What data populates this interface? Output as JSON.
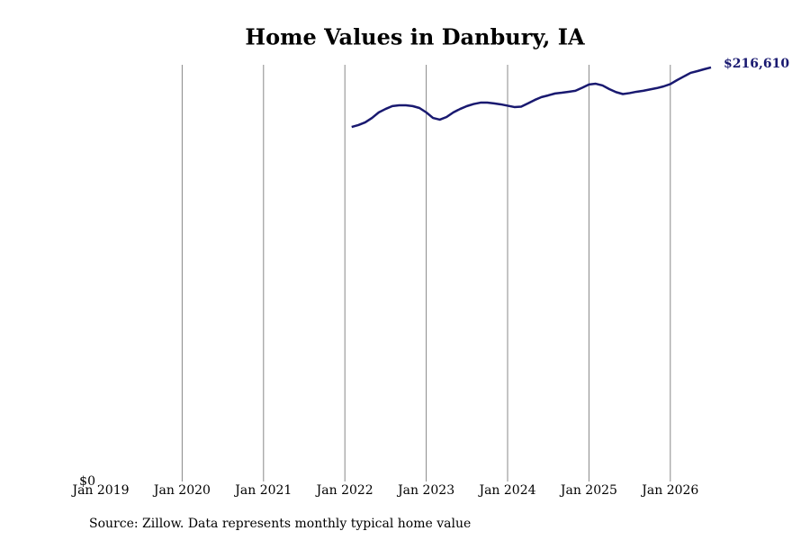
{
  "chart_data": {
    "type": "line",
    "title": "Home Values in Danbury, IA",
    "source": "Source: Zillow. Data represents monthly typical home value",
    "x": [
      "2022-02",
      "2022-03",
      "2022-04",
      "2022-05",
      "2022-06",
      "2022-07",
      "2022-08",
      "2022-09",
      "2022-10",
      "2022-11",
      "2022-12",
      "2023-01",
      "2023-02",
      "2023-03",
      "2023-04",
      "2023-05",
      "2023-06",
      "2023-07",
      "2023-08",
      "2023-09",
      "2023-10",
      "2023-11",
      "2023-12",
      "2024-01",
      "2024-02",
      "2024-03",
      "2024-04",
      "2024-05",
      "2024-06",
      "2024-07",
      "2024-08",
      "2024-09",
      "2024-10",
      "2024-11",
      "2024-12",
      "2025-01",
      "2025-02",
      "2025-03",
      "2025-04",
      "2025-05",
      "2025-06",
      "2025-07",
      "2025-08",
      "2025-09",
      "2025-10",
      "2025-11",
      "2025-12",
      "2026-01",
      "2026-02",
      "2026-03",
      "2026-04",
      "2026-05",
      "2026-06",
      "2026-07"
    ],
    "series": [
      {
        "name": "Home value",
        "color": "#191970",
        "values": [
          185500,
          186500,
          187900,
          190200,
          193100,
          194900,
          196400,
          196800,
          196800,
          196400,
          195400,
          193100,
          190200,
          189300,
          190700,
          193100,
          194900,
          196400,
          197500,
          198200,
          198200,
          197800,
          197300,
          196600,
          195900,
          196100,
          197800,
          199600,
          201100,
          202000,
          203000,
          203400,
          203900,
          204400,
          206000,
          207700,
          208100,
          207200,
          205300,
          203700,
          202700,
          203200,
          203900,
          204400,
          205100,
          205800,
          206700,
          207900,
          210000,
          211900,
          213800,
          214700,
          215700,
          216610
        ],
        "value_labels": [
          null,
          null,
          null,
          null,
          null,
          null,
          null,
          null,
          null,
          null,
          null,
          null,
          null,
          null,
          null,
          null,
          null,
          null,
          null,
          null,
          null,
          null,
          null,
          null,
          null,
          null,
          null,
          null,
          null,
          null,
          null,
          null,
          null,
          null,
          null,
          null,
          null,
          null,
          null,
          null,
          null,
          null,
          null,
          null,
          null,
          null,
          null,
          null,
          null,
          null,
          null,
          null,
          null,
          "$216,610"
        ]
      }
    ],
    "xlim": [
      "2019-01",
      "2026-07"
    ],
    "xticks": [
      {
        "value": "2019-01",
        "label": "Jan 2019"
      },
      {
        "value": "2020-01",
        "label": "Jan 2020"
      },
      {
        "value": "2021-01",
        "label": "Jan 2021"
      },
      {
        "value": "2022-01",
        "label": "Jan 2022"
      },
      {
        "value": "2023-01",
        "label": "Jan 2023"
      },
      {
        "value": "2024-01",
        "label": "Jan 2024"
      },
      {
        "value": "2025-01",
        "label": "Jan 2025"
      },
      {
        "value": "2026-01",
        "label": "Jan 2026"
      }
    ],
    "ylim": [
      0,
      218000
    ],
    "yticks": [
      {
        "value": 0,
        "label": "$0"
      }
    ],
    "grid": true
  }
}
